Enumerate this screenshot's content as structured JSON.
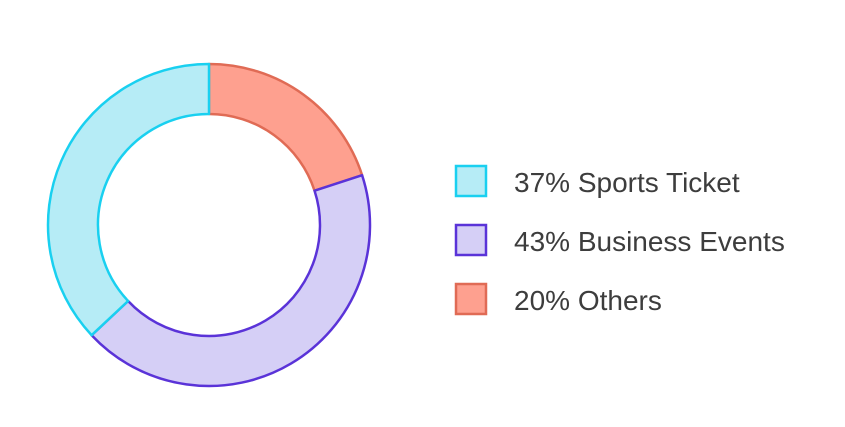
{
  "chart_data": {
    "type": "pie",
    "variant": "donut",
    "slices": [
      {
        "label": "37% Sports Ticket",
        "value": 37,
        "fill": "#b6ecf6",
        "stroke": "#19d0f0"
      },
      {
        "label": "43% Business Events",
        "value": 43,
        "fill": "#d5cff6",
        "stroke": "#5a33d8"
      },
      {
        "label": "20% Others",
        "value": 20,
        "fill": "#fea08f",
        "stroke": "#e06b55"
      }
    ],
    "slice_order_clockwise_from_top": [
      "20% Others",
      "43% Business Events",
      "37% Sports Ticket"
    ],
    "legend_position": "right"
  }
}
